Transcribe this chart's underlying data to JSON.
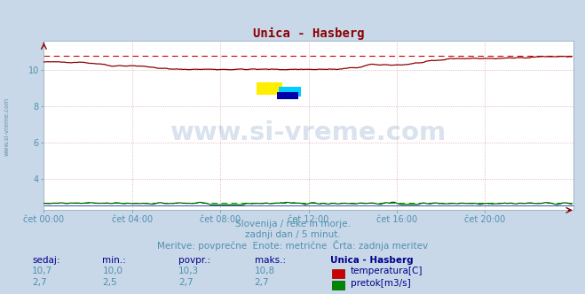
{
  "title": "Unica - Hasberg",
  "title_color": "#8b0000",
  "bg_color": "#c8d8e8",
  "plot_bg_color": "#ffffff",
  "xlabel_ticks": [
    "čet 00:00",
    "čet 04:00",
    "čet 08:00",
    "čet 12:00",
    "čet 16:00",
    "čet 20:00"
  ],
  "tick_color": "#5090b0",
  "ylim": [
    2.3,
    11.6
  ],
  "xlim": [
    0,
    288
  ],
  "temp_color": "#8b0000",
  "temp_dashed_color": "#cc0000",
  "flow_color": "#006400",
  "flow_dashed_color": "#00aa00",
  "blue_line_color": "#3050b0",
  "subtitle1": "Slovenija / reke in morje.",
  "subtitle2": "zadnji dan / 5 minut.",
  "subtitle3": "Meritve: povprečne  Enote: metrične  Črta: zadnja meritev",
  "subtitle_color": "#5090b0",
  "table_header": [
    "sedaj:",
    "min.:",
    "povpr.:",
    "maks.:",
    "Unica - Hasberg"
  ],
  "table_row1": [
    "10,7",
    "10,0",
    "10,3",
    "10,8"
  ],
  "table_row2": [
    "2,7",
    "2,5",
    "2,7",
    "2,7"
  ],
  "label_temp": "temperatura[C]",
  "label_flow": "pretok[m3/s]",
  "header_color": "#00008b",
  "data_color": "#5090b0",
  "watermark_text": "www.si-vreme.com",
  "watermark_color": "#3060a0",
  "watermark_alpha": 0.18,
  "temp_max": 10.8,
  "flow_max": 2.7,
  "yticks": [
    4,
    6,
    8,
    10
  ],
  "grid_x": [
    48,
    96,
    144,
    192,
    240
  ],
  "grid_color": "#e0b0b8",
  "spine_color": "#a0b8c8"
}
